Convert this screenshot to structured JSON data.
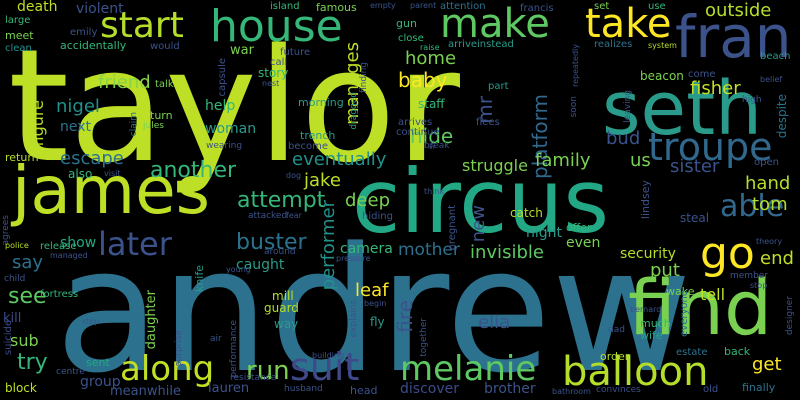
{
  "words": [
    {
      "text": "taylor",
      "color": "#bddf26"
    },
    {
      "text": "andrew",
      "color": "#2c728e"
    },
    {
      "text": "circus",
      "color": "#22a884"
    },
    {
      "text": "james",
      "color": "#bddf26"
    },
    {
      "text": "seth",
      "color": "#2a9b8a"
    },
    {
      "text": "find",
      "color": "#7ad151"
    },
    {
      "text": "fran",
      "color": "#3b528b"
    },
    {
      "text": "house",
      "color": "#35b779"
    },
    {
      "text": "make",
      "color": "#5ec962"
    },
    {
      "text": "take",
      "color": "#fde725"
    },
    {
      "text": "start",
      "color": "#b5de2b"
    },
    {
      "text": "balloon",
      "color": "#b5de2b"
    },
    {
      "text": "melanie",
      "color": "#5ec962"
    },
    {
      "text": "troupe",
      "color": "#31688e"
    },
    {
      "text": "suit",
      "color": "#3e4a89"
    },
    {
      "text": "along",
      "color": "#c2df23"
    },
    {
      "text": "go",
      "color": "#fde725"
    },
    {
      "text": "later",
      "color": "#3b528b"
    },
    {
      "text": "able",
      "color": "#31688e"
    },
    {
      "text": "run",
      "color": "#7ad151"
    },
    {
      "text": "attempt",
      "color": "#35b779"
    },
    {
      "text": "another",
      "color": "#35b779"
    },
    {
      "text": "buster",
      "color": "#2c728e"
    },
    {
      "text": "platform",
      "color": "#31688e"
    },
    {
      "text": "manages",
      "color": "#bddf26"
    },
    {
      "text": "performer",
      "color": "#21918c"
    },
    {
      "text": "fire",
      "color": "#3b528b"
    },
    {
      "text": "invisible",
      "color": "#5ec962"
    },
    {
      "text": "mother",
      "color": "#2c728e"
    },
    {
      "text": "jake",
      "color": "#bddf26"
    },
    {
      "text": "eventually",
      "color": "#21918c"
    },
    {
      "text": "hide",
      "color": "#5ec962"
    },
    {
      "text": "baby",
      "color": "#fde725"
    },
    {
      "text": "home",
      "color": "#7ad151"
    },
    {
      "text": "nigel",
      "color": "#21918c"
    },
    {
      "text": "friend",
      "color": "#86d549"
    },
    {
      "text": "escape",
      "color": "#2c728e"
    },
    {
      "text": "figure",
      "color": "#b5de2b"
    },
    {
      "text": "fisher",
      "color": "#c2df23"
    },
    {
      "text": "outside",
      "color": "#b5de2b"
    },
    {
      "text": "bud",
      "color": "#3b528b"
    },
    {
      "text": "us",
      "color": "#7ad151"
    },
    {
      "text": "hand",
      "color": "#b5de2b"
    },
    {
      "text": "tom",
      "color": "#b5de2b"
    },
    {
      "text": "sister",
      "color": "#3b528b"
    },
    {
      "text": "family",
      "color": "#7ad151"
    },
    {
      "text": "struggle",
      "color": "#7ad151"
    },
    {
      "text": "mr",
      "color": "#3b528b"
    },
    {
      "text": "deep",
      "color": "#7ad151"
    },
    {
      "text": "new",
      "color": "#3b528b"
    },
    {
      "text": "leaf",
      "color": "#fde725"
    },
    {
      "text": "elia",
      "color": "#3b528b"
    },
    {
      "text": "tell",
      "color": "#c2df23"
    },
    {
      "text": "put",
      "color": "#7ad151"
    },
    {
      "text": "end",
      "color": "#c2df23"
    },
    {
      "text": "security",
      "color": "#b5de2b"
    },
    {
      "text": "see",
      "color": "#5ec962"
    },
    {
      "text": "say",
      "color": "#2c728e"
    },
    {
      "text": "try",
      "color": "#35b779"
    },
    {
      "text": "sub",
      "color": "#7ad151"
    },
    {
      "text": "get",
      "color": "#fde725"
    },
    {
      "text": "show",
      "color": "#22a884"
    },
    {
      "text": "caught",
      "color": "#2a9b8a"
    },
    {
      "text": "camera",
      "color": "#35b779"
    },
    {
      "text": "night",
      "color": "#2a9b8a"
    },
    {
      "text": "even",
      "color": "#7ad151"
    },
    {
      "text": "death",
      "color": "#c2df23"
    },
    {
      "text": "violent",
      "color": "#3b528b"
    },
    {
      "text": "next",
      "color": "#2c728e"
    },
    {
      "text": "woman",
      "color": "#2a9b8a"
    },
    {
      "text": "help",
      "color": "#35b779"
    },
    {
      "text": "brother",
      "color": "#3b528b"
    },
    {
      "text": "group",
      "color": "#3b528b"
    },
    {
      "text": "discover",
      "color": "#3e4a89"
    },
    {
      "text": "lauren",
      "color": "#3b528b"
    },
    {
      "text": "meanwhile",
      "color": "#3b528b"
    },
    {
      "text": "daughter",
      "color": "#7ad151"
    },
    {
      "text": "mill",
      "color": "#b5de2b"
    },
    {
      "text": "guard",
      "color": "#b5de2b"
    },
    {
      "text": "way",
      "color": "#2a9b8a"
    },
    {
      "text": "war",
      "color": "#7ad151"
    },
    {
      "text": "story",
      "color": "#35b779"
    },
    {
      "text": "staff",
      "color": "#35b779"
    },
    {
      "text": "catch",
      "color": "#b5de2b"
    },
    {
      "text": "kill",
      "color": "#3e4a89"
    },
    {
      "text": "block",
      "color": "#bddf26"
    },
    {
      "text": "sent",
      "color": "#22a884"
    },
    {
      "text": "knife",
      "color": "#2a9b8a"
    },
    {
      "text": "wake",
      "color": "#7ad151"
    },
    {
      "text": "steal",
      "color": "#3b528b"
    },
    {
      "text": "offer",
      "color": "#35b779"
    },
    {
      "text": "fly",
      "color": "#2a9b8a"
    },
    {
      "text": "order",
      "color": "#b5de2b"
    },
    {
      "text": "back",
      "color": "#35b779"
    },
    {
      "text": "finally",
      "color": "#2c728e"
    },
    {
      "text": "much",
      "color": "#35b779"
    },
    {
      "text": "wife",
      "color": "#22a884"
    },
    {
      "text": "head",
      "color": "#3b528b"
    },
    {
      "text": "old",
      "color": "#3b528b"
    },
    {
      "text": "estate",
      "color": "#2c728e"
    },
    {
      "text": "lindsey",
      "color": "#3b528b"
    },
    {
      "text": "everyone",
      "color": "#2c728e"
    },
    {
      "text": "meet",
      "color": "#7ad151"
    },
    {
      "text": "accidentally",
      "color": "#35b779"
    },
    {
      "text": "would",
      "color": "#3b528b"
    },
    {
      "text": "famous",
      "color": "#7ad151"
    },
    {
      "text": "gun",
      "color": "#35b779"
    },
    {
      "text": "set",
      "color": "#7ad151"
    },
    {
      "text": "use",
      "color": "#35b779"
    },
    {
      "text": "francis",
      "color": "#3b528b"
    },
    {
      "text": "attention",
      "color": "#2c728e"
    },
    {
      "text": "close",
      "color": "#35b779"
    },
    {
      "text": "arriveinstead",
      "color": "#2a9b8a"
    },
    {
      "text": "realizes",
      "color": "#2c728e"
    },
    {
      "text": "beach",
      "color": "#2a9b8a"
    },
    {
      "text": "island",
      "color": "#35b779"
    },
    {
      "text": "empty",
      "color": "#3b528b"
    },
    {
      "text": "parent",
      "color": "#3b528b"
    },
    {
      "text": "large",
      "color": "#35b779"
    },
    {
      "text": "emily",
      "color": "#3b528b"
    },
    {
      "text": "clean",
      "color": "#21918c"
    },
    {
      "text": "future",
      "color": "#3b528b"
    },
    {
      "text": "capsule",
      "color": "#3b528b"
    },
    {
      "text": "call",
      "color": "#3b528b"
    },
    {
      "text": "nest",
      "color": "#3b528b"
    },
    {
      "text": "raise",
      "color": "#35b779"
    },
    {
      "text": "system",
      "color": "#b5de2b"
    },
    {
      "text": "repeatedly",
      "color": "#3b528b"
    },
    {
      "text": "beacon",
      "color": "#7ad151"
    },
    {
      "text": "come",
      "color": "#3b528b"
    },
    {
      "text": "leaving",
      "color": "#3b528b"
    },
    {
      "text": "soon",
      "color": "#3b528b"
    },
    {
      "text": "high",
      "color": "#3b528b"
    },
    {
      "text": "belief",
      "color": "#3b528b"
    },
    {
      "text": "despite",
      "color": "#2c728e"
    },
    {
      "text": "talk",
      "color": "#7ad151"
    },
    {
      "text": "turn",
      "color": "#7ad151"
    },
    {
      "text": "jules",
      "color": "#7ad151"
    },
    {
      "text": "claim",
      "color": "#2c728e"
    },
    {
      "text": "morning",
      "color": "#2a9b8a"
    },
    {
      "text": "dragged",
      "color": "#2a9b8a"
    },
    {
      "text": "finding",
      "color": "#3b528b"
    },
    {
      "text": "part",
      "color": "#2a9b8a"
    },
    {
      "text": "arrives",
      "color": "#3b528b"
    },
    {
      "text": "flees",
      "color": "#3b528b"
    },
    {
      "text": "continue",
      "color": "#3b528b"
    },
    {
      "text": "su",
      "color": "#3b528b"
    },
    {
      "text": "trench",
      "color": "#2a9b8a"
    },
    {
      "text": "wearing",
      "color": "#3b528b"
    },
    {
      "text": "become",
      "color": "#3b528b"
    },
    {
      "text": "break",
      "color": "#3b528b"
    },
    {
      "text": "open",
      "color": "#3b528b"
    },
    {
      "text": "return",
      "color": "#b5de2b"
    },
    {
      "text": "also",
      "color": "#35b779"
    },
    {
      "text": "visit",
      "color": "#3b528b"
    },
    {
      "text": "dog",
      "color": "#3b528b"
    },
    {
      "text": "agrees",
      "color": "#3b528b"
    },
    {
      "text": "attacked",
      "color": "#3b528b"
    },
    {
      "text": "fear",
      "color": "#3b528b"
    },
    {
      "text": "hiding",
      "color": "#3b528b"
    },
    {
      "text": "think",
      "color": "#3b528b"
    },
    {
      "text": "pregnant",
      "color": "#3b528b"
    },
    {
      "text": "police",
      "color": "#b5de2b"
    },
    {
      "text": "release",
      "color": "#35b779"
    },
    {
      "text": "managed",
      "color": "#3b528b"
    },
    {
      "text": "around",
      "color": "#3b528b"
    },
    {
      "text": "pressure",
      "color": "#3b528b"
    },
    {
      "text": "theory",
      "color": "#3b528b"
    },
    {
      "text": "child",
      "color": "#3b528b"
    },
    {
      "text": "young",
      "color": "#3b528b"
    },
    {
      "text": "member",
      "color": "#3b528b"
    },
    {
      "text": "stop",
      "color": "#3b528b"
    },
    {
      "text": "fortress",
      "color": "#35b779"
    },
    {
      "text": "explains",
      "color": "#3b528b"
    },
    {
      "text": "begin",
      "color": "#3b528b"
    },
    {
      "text": "bernard",
      "color": "#3b528b"
    },
    {
      "text": "step",
      "color": "#3b528b"
    },
    {
      "text": "surprise",
      "color": "#3b528b"
    },
    {
      "text": "air",
      "color": "#3b528b"
    },
    {
      "text": "performance",
      "color": "#3b528b"
    },
    {
      "text": "building",
      "color": "#3b528b"
    },
    {
      "text": "together",
      "color": "#3b528b"
    },
    {
      "text": "dad",
      "color": "#3b528b"
    },
    {
      "text": "designer",
      "color": "#3b528b"
    },
    {
      "text": "suicide",
      "color": "#3e4a89"
    },
    {
      "text": "centre",
      "color": "#3b528b"
    },
    {
      "text": "resistance",
      "color": "#3b528b"
    },
    {
      "text": "husband",
      "color": "#3b528b"
    },
    {
      "text": "bathroom",
      "color": "#3b528b"
    },
    {
      "text": "convinces",
      "color": "#3b528b"
    },
    {
      "text": "leaf",
      "color": "#3b528b"
    }
  ]
}
